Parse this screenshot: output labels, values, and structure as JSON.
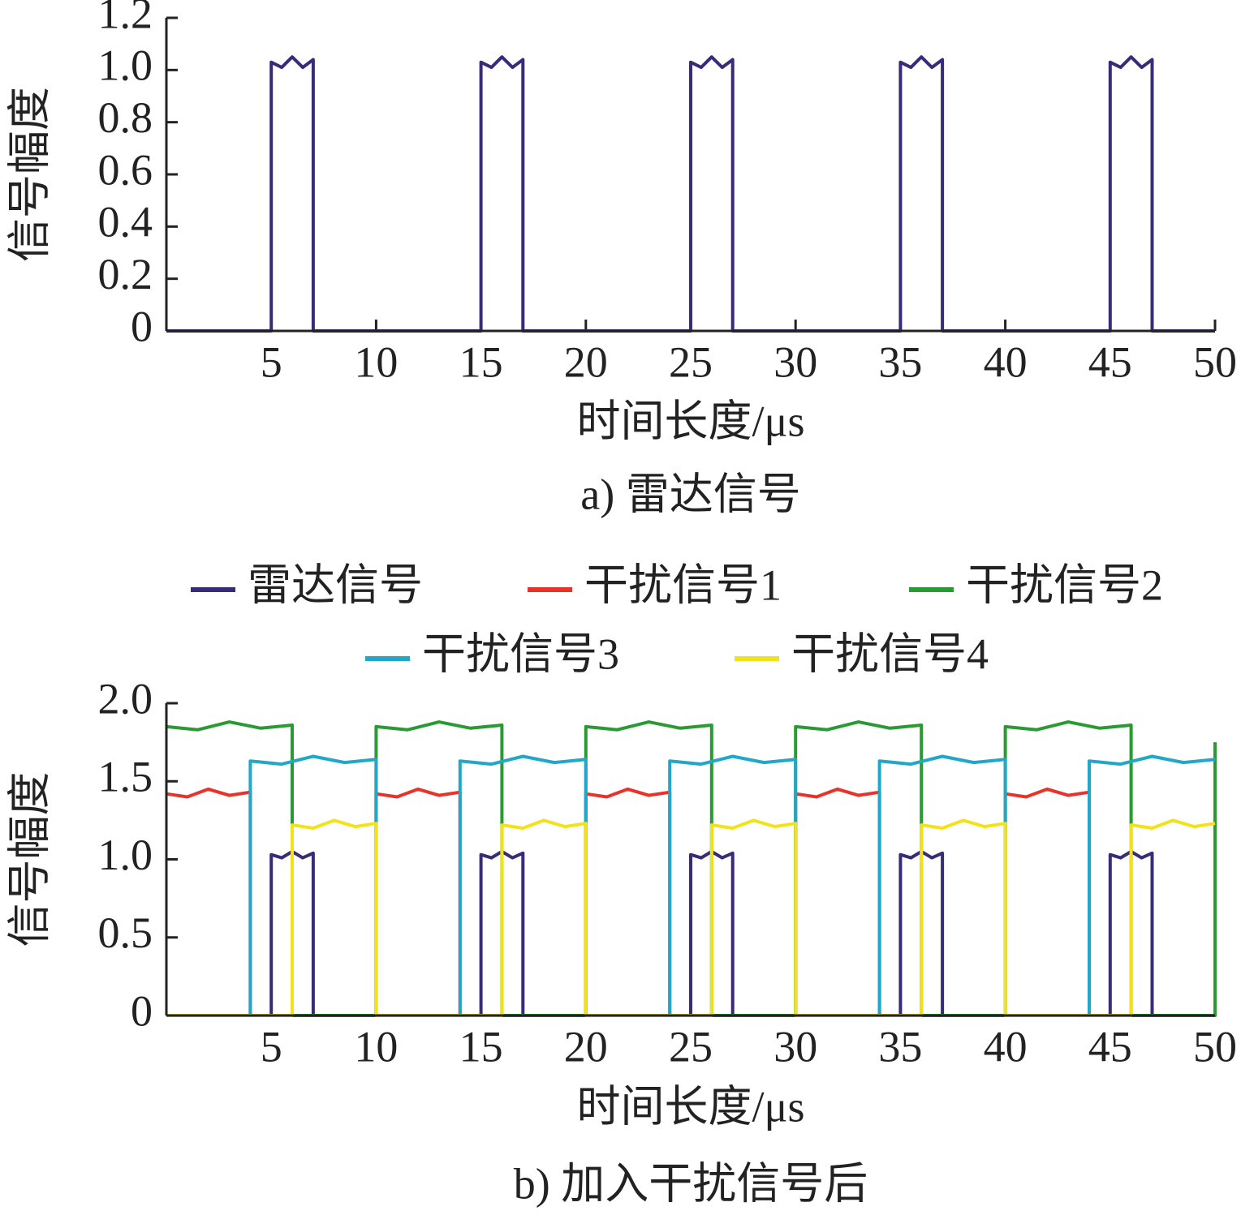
{
  "chart_data": [
    {
      "type": "line",
      "caption": "a) 雷达信号",
      "xlabel": "时间长度/μs",
      "ylabel": "信号幅度",
      "xlim": [
        0,
        50
      ],
      "xticks": [
        5,
        10,
        15,
        20,
        25,
        30,
        35,
        40,
        45,
        50
      ],
      "ylim": [
        0,
        1.2
      ],
      "yticks": [
        0,
        0.2,
        0.4,
        0.6,
        0.8,
        {
          "value": 1,
          "label": "1.0"
        },
        1.2
      ],
      "series": [
        {
          "color": "#3a2a7a",
          "x": [
            0,
            5,
            5,
            5.5,
            6,
            6.5,
            7,
            7,
            15,
            15,
            15.5,
            16,
            16.5,
            17,
            17,
            25,
            25,
            25.5,
            26,
            26.5,
            27,
            27,
            35,
            35,
            35.5,
            36,
            36.5,
            37,
            37,
            45,
            45,
            45.5,
            46,
            46.5,
            47,
            47,
            50
          ],
          "values": [
            0,
            0,
            1.03,
            1.01,
            1.05,
            1.01,
            1.04,
            0,
            0,
            1.03,
            1.01,
            1.05,
            1.01,
            1.04,
            0,
            0,
            1.03,
            1.01,
            1.05,
            1.01,
            1.04,
            0,
            0,
            1.03,
            1.01,
            1.05,
            1.01,
            1.04,
            0,
            0,
            1.03,
            1.01,
            1.05,
            1.01,
            1.04,
            0,
            0
          ]
        }
      ]
    },
    {
      "type": "line",
      "caption": "b) 加入干扰信号后",
      "xlabel": "时间长度/μs",
      "ylabel": "信号幅度",
      "legend": "top",
      "xlim": [
        0,
        50
      ],
      "xticks": [
        5,
        10,
        15,
        20,
        25,
        30,
        35,
        40,
        45,
        50
      ],
      "ylim": [
        0,
        2
      ],
      "yticks": [
        0,
        0.5,
        {
          "value": 1,
          "label": "1.0"
        },
        1.5,
        {
          "value": 2,
          "label": "2.0"
        }
      ],
      "series": [
        {
          "name": "雷达信号",
          "color": "#3a2a7a",
          "x": [
            0,
            5,
            5,
            5.5,
            6,
            6.5,
            7,
            7,
            15,
            15,
            15.5,
            16,
            16.5,
            17,
            17,
            25,
            25,
            25.5,
            26,
            26.5,
            27,
            27,
            35,
            35,
            35.5,
            36,
            36.5,
            37,
            37,
            45,
            45,
            45.5,
            46,
            46.5,
            47,
            47,
            50
          ],
          "values": [
            0,
            0,
            1.03,
            1.01,
            1.05,
            1.01,
            1.04,
            0,
            0,
            1.03,
            1.01,
            1.05,
            1.01,
            1.04,
            0,
            0,
            1.03,
            1.01,
            1.05,
            1.01,
            1.04,
            0,
            0,
            1.03,
            1.01,
            1.05,
            1.01,
            1.04,
            0,
            0,
            1.03,
            1.01,
            1.05,
            1.01,
            1.04,
            0,
            0
          ]
        },
        {
          "name": "干扰信号1",
          "color": "#e8332a",
          "x": [
            0,
            1,
            2,
            3,
            4,
            4,
            10,
            10,
            11,
            12,
            13,
            14,
            14,
            20,
            20,
            21,
            22,
            23,
            24,
            24,
            30,
            30,
            31,
            32,
            33,
            34,
            34,
            40,
            40,
            41,
            42,
            43,
            44,
            44,
            50
          ],
          "values": [
            1.42,
            1.4,
            1.45,
            1.41,
            1.43,
            0,
            0,
            1.42,
            1.4,
            1.45,
            1.41,
            1.43,
            0,
            0,
            1.42,
            1.4,
            1.45,
            1.41,
            1.43,
            0,
            0,
            1.42,
            1.4,
            1.45,
            1.41,
            1.43,
            0,
            0,
            1.42,
            1.4,
            1.45,
            1.41,
            1.43,
            0,
            0
          ]
        },
        {
          "name": "干扰信号2",
          "color": "#2a9a32",
          "x": [
            0,
            1.5,
            3,
            4.5,
            6,
            6,
            10,
            10,
            11.5,
            13,
            14.5,
            16,
            16,
            20,
            20,
            21.5,
            23,
            24.5,
            26,
            26,
            30,
            30,
            31.5,
            33,
            34.5,
            36,
            36,
            40,
            40,
            41.5,
            43,
            44.5,
            46,
            46,
            50,
            50
          ],
          "values": [
            1.85,
            1.83,
            1.88,
            1.84,
            1.86,
            0,
            0,
            1.85,
            1.83,
            1.88,
            1.84,
            1.86,
            0,
            0,
            1.85,
            1.83,
            1.88,
            1.84,
            1.86,
            0,
            0,
            1.85,
            1.83,
            1.88,
            1.84,
            1.86,
            0,
            0,
            1.85,
            1.83,
            1.88,
            1.84,
            1.86,
            0,
            0,
            1.75
          ]
        },
        {
          "name": "干扰信号3",
          "color": "#21a8c8",
          "x": [
            0,
            4,
            4,
            5.5,
            7,
            8.5,
            10,
            10,
            14,
            14,
            15.5,
            17,
            18.5,
            20,
            20,
            24,
            24,
            25.5,
            27,
            28.5,
            30,
            30,
            34,
            34,
            35.5,
            37,
            38.5,
            40,
            40,
            44,
            44,
            45.5,
            47,
            48.5,
            50
          ],
          "values": [
            0,
            0,
            1.63,
            1.61,
            1.66,
            1.62,
            1.64,
            0,
            0,
            1.63,
            1.61,
            1.66,
            1.62,
            1.64,
            0,
            0,
            1.63,
            1.61,
            1.66,
            1.62,
            1.64,
            0,
            0,
            1.63,
            1.61,
            1.66,
            1.62,
            1.64,
            0,
            0,
            1.63,
            1.61,
            1.66,
            1.62,
            1.64
          ]
        },
        {
          "name": "干扰信号4",
          "color": "#f2e21a",
          "x": [
            0,
            6,
            6,
            7,
            8,
            9,
            10,
            10,
            16,
            16,
            17,
            18,
            19,
            20,
            20,
            26,
            26,
            27,
            28,
            29,
            30,
            30,
            36,
            36,
            37,
            38,
            39,
            40,
            40,
            46,
            46,
            47,
            48,
            49,
            50
          ],
          "values": [
            0,
            0,
            1.22,
            1.2,
            1.25,
            1.21,
            1.23,
            0,
            0,
            1.22,
            1.2,
            1.25,
            1.21,
            1.23,
            0,
            0,
            1.22,
            1.2,
            1.25,
            1.21,
            1.23,
            0,
            0,
            1.22,
            1.2,
            1.25,
            1.21,
            1.23,
            0,
            0,
            1.22,
            1.2,
            1.25,
            1.21,
            1.23
          ]
        }
      ]
    }
  ]
}
